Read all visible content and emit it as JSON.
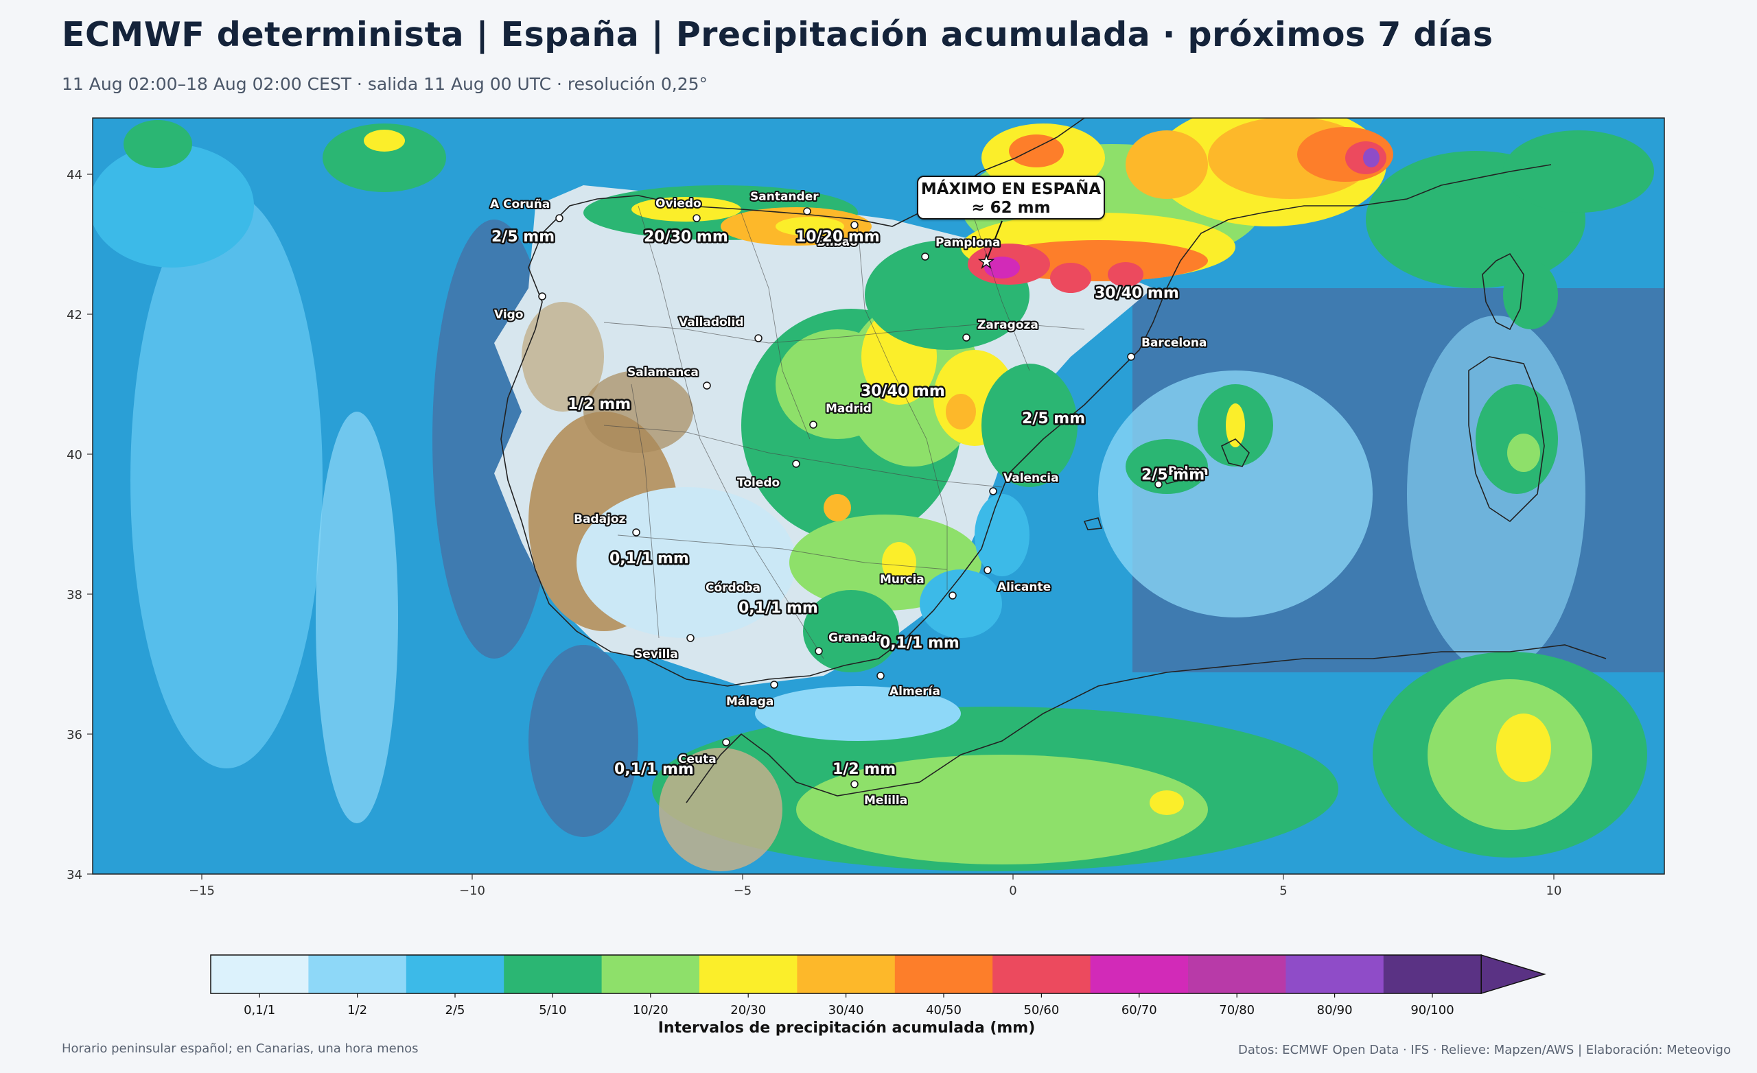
{
  "title": "ECMWF determinista | España | Precipitación acumulada · próximos 7 días",
  "subtitle": "11 Aug 02:00–18 Aug 02:00 CEST · salida 11 Aug 00 UTC · resolución 0,25°",
  "max_box": {
    "line1": "MÁXIMO EN ESPAÑA",
    "line2": "≈ 62 mm"
  },
  "axes": {
    "lon_ticks": [
      "−15",
      "−10",
      "−5",
      "0",
      "5",
      "10"
    ],
    "lat_ticks": [
      "44",
      "42",
      "40",
      "38",
      "36",
      "34"
    ]
  },
  "cities": [
    {
      "name": "A Coruña"
    },
    {
      "name": "Oviedo"
    },
    {
      "name": "Santander"
    },
    {
      "name": "Bilbao"
    },
    {
      "name": "Pamplona"
    },
    {
      "name": "Vigo"
    },
    {
      "name": "Valladolid"
    },
    {
      "name": "Zaragoza"
    },
    {
      "name": "Barcelona"
    },
    {
      "name": "Salamanca"
    },
    {
      "name": "Madrid"
    },
    {
      "name": "Toledo"
    },
    {
      "name": "Valencia"
    },
    {
      "name": "Palma"
    },
    {
      "name": "Badajoz"
    },
    {
      "name": "Córdoba"
    },
    {
      "name": "Murcia"
    },
    {
      "name": "Alicante"
    },
    {
      "name": "Granada"
    },
    {
      "name": "Sevilla"
    },
    {
      "name": "Almería"
    },
    {
      "name": "Málaga"
    },
    {
      "name": "Ceuta"
    },
    {
      "name": "Melilla"
    }
  ],
  "amounts": [
    {
      "text": "2/5 mm"
    },
    {
      "text": "20/30 mm"
    },
    {
      "text": "10/20 mm"
    },
    {
      "text": "30/40 mm"
    },
    {
      "text": "1/2 mm"
    },
    {
      "text": "30/40 mm"
    },
    {
      "text": "2/5 mm"
    },
    {
      "text": "2/5 mm"
    },
    {
      "text": "0,1/1 mm"
    },
    {
      "text": "0,1/1 mm"
    },
    {
      "text": "0,1/1 mm"
    },
    {
      "text": "0,1/1 mm"
    },
    {
      "text": "1/2 mm"
    }
  ],
  "colorbar": {
    "title": "Intervalos de precipitación acumulada (mm)",
    "bins": [
      {
        "label": "0,1/1",
        "color": "#dcf2fc"
      },
      {
        "label": "1/2",
        "color": "#8ed8f8"
      },
      {
        "label": "2/5",
        "color": "#3cbae8"
      },
      {
        "label": "5/10",
        "color": "#2bb673"
      },
      {
        "label": "10/20",
        "color": "#8ee06a"
      },
      {
        "label": "20/30",
        "color": "#fbee2a"
      },
      {
        "label": "30/40",
        "color": "#fdb82a"
      },
      {
        "label": "40/50",
        "color": "#fd7e2a"
      },
      {
        "label": "50/60",
        "color": "#ec4a5e"
      },
      {
        "label": "60/70",
        "color": "#d22ab8"
      },
      {
        "label": "70/80",
        "color": "#b83aa8"
      },
      {
        "label": "80/90",
        "color": "#8f4cc8"
      },
      {
        "label": "90/100",
        "color": "#5a3284"
      }
    ]
  },
  "footer_left": "Horario peninsular español; en Canarias, una hora menos",
  "footer_right": "Datos: ECMWF Open Data · IFS · Relieve: Mapzen/AWS | Elaboración: Meteovigo"
}
